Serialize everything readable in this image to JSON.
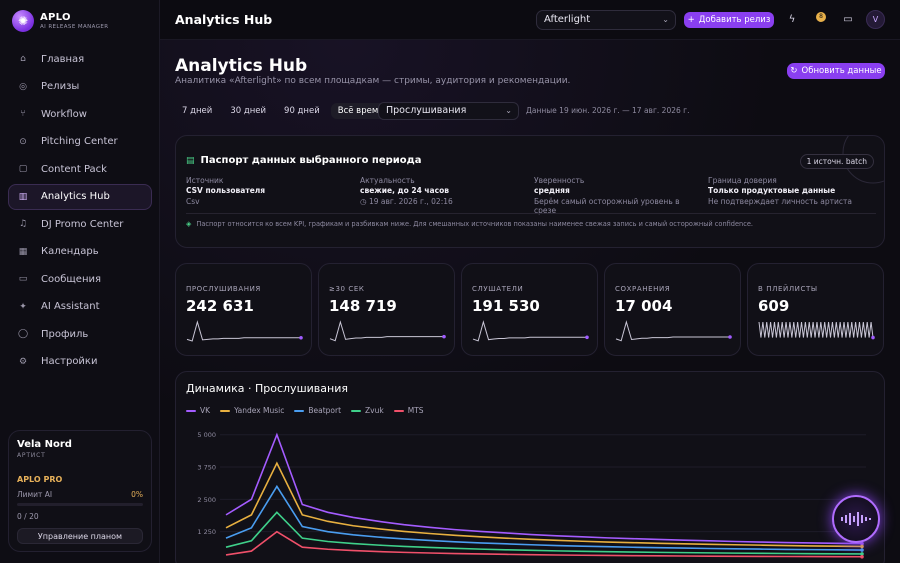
{
  "brand": {
    "name": "APLO",
    "subtitle": "AI RELEASE MANAGER"
  },
  "sidebar": {
    "items": [
      {
        "label": "Главная",
        "icon": "home-icon",
        "active": false
      },
      {
        "label": "Релизы",
        "icon": "disc-icon",
        "active": false
      },
      {
        "label": "Workflow",
        "icon": "workflow-icon",
        "active": false
      },
      {
        "label": "Pitching Center",
        "icon": "target-icon",
        "active": false
      },
      {
        "label": "Content Pack",
        "icon": "package-icon",
        "active": false
      },
      {
        "label": "Analytics Hub",
        "icon": "chart-icon",
        "active": true
      },
      {
        "label": "DJ Promo Center",
        "icon": "headphones-icon",
        "active": false
      },
      {
        "label": "Календарь",
        "icon": "calendar-icon",
        "active": false
      },
      {
        "label": "Сообщения",
        "icon": "message-icon",
        "active": false
      },
      {
        "label": "AI Assistant",
        "icon": "sparkle-icon",
        "active": false
      },
      {
        "label": "Профиль",
        "icon": "user-icon",
        "active": false
      },
      {
        "label": "Настройки",
        "icon": "gear-icon",
        "active": false
      }
    ]
  },
  "user": {
    "name": "Vela Nord",
    "role": "АРТИСТ",
    "plan": "APLO PRO",
    "limit_label": "Лимит AI",
    "limit_pct": "0%",
    "limit_count": "0 / 20",
    "manage_label": "Управление планом"
  },
  "topbar": {
    "title": "Analytics Hub",
    "release": "Afterlight",
    "add_release": "Добавить релиз",
    "notif_count": "8",
    "avatar_letter": "V"
  },
  "page": {
    "title": "Analytics Hub",
    "subtitle": "Аналитика «Afterlight» по всем площадкам — стримы, аудитория и рекомендации.",
    "refresh": "Обновить данные",
    "periods": [
      "7 дней",
      "30 дней",
      "90 дней",
      "Всё время"
    ],
    "active_period": 3,
    "metric": "Прослушивания",
    "data_range": "Данные 19 июн. 2026 г. — 17 авг. 2026 г."
  },
  "passport": {
    "title": "Паспорт данных выбранного периода",
    "batch": "1 источн. batch",
    "columns": [
      {
        "label": "Источник",
        "value": "CSV пользователя",
        "note": "Csv"
      },
      {
        "label": "Актуальность",
        "value": "свежие, до 24 часов",
        "note": "19 авг. 2026 г., 02:16"
      },
      {
        "label": "Уверенность",
        "value": "средняя",
        "note": "Берём самый осторожный уровень в срезе"
      },
      {
        "label": "Граница доверия",
        "value": "Только продуктовые данные",
        "note": "Не подтверждает личность артиста"
      }
    ],
    "footnote": "Паспорт относится ко всем KPI, графикам и разбивкам ниже. Для смешанных источников показаны наименее свежая запись и самый осторожный confidence."
  },
  "kpis": [
    {
      "label": "ПРОСЛУШИВАНИЯ",
      "value": "242 631",
      "spark": [
        5,
        2,
        38,
        4,
        5,
        6,
        6,
        7,
        7,
        7,
        7,
        8,
        8,
        8,
        8,
        8,
        8,
        8,
        8,
        8,
        8,
        8,
        8
      ]
    },
    {
      "label": "≥30 СЕК",
      "value": "148 719",
      "spark": [
        5,
        2,
        30,
        4,
        5,
        6,
        6,
        7,
        7,
        7,
        7,
        8,
        8,
        8,
        8,
        8,
        8,
        8,
        8,
        8,
        8,
        8,
        8
      ]
    },
    {
      "label": "СЛУШАТЕЛИ",
      "value": "191 530",
      "spark": [
        5,
        2,
        34,
        4,
        5,
        6,
        6,
        7,
        7,
        7,
        7,
        8,
        8,
        8,
        8,
        8,
        8,
        8,
        8,
        8,
        8,
        8,
        8
      ]
    },
    {
      "label": "СОХРАНЕНИЯ",
      "value": "17 004",
      "spark": [
        5,
        2,
        32,
        4,
        5,
        6,
        6,
        7,
        7,
        7,
        7,
        8,
        8,
        8,
        8,
        8,
        8,
        8,
        8,
        8,
        8,
        8,
        8
      ]
    },
    {
      "label": "В ПЛЕЙЛИСТЫ",
      "value": "609",
      "spark": [
        9,
        2,
        9,
        2,
        9,
        2,
        9,
        2,
        9,
        2,
        9,
        2,
        9,
        2,
        9,
        2,
        9,
        2,
        9,
        2,
        9,
        2,
        9,
        2,
        9,
        2,
        9,
        2,
        9,
        2,
        9,
        2,
        9,
        2,
        9,
        2,
        9,
        2,
        9,
        2,
        9,
        2,
        9,
        2,
        9,
        2,
        9,
        2,
        9,
        2,
        9,
        2,
        9,
        2,
        9,
        2,
        9,
        2,
        9,
        2
      ]
    }
  ],
  "colors": {
    "accent": "#8a3ff0",
    "kpi_line": "#c9c6d6",
    "kpi_dot": "#a05cff"
  },
  "chart_data": {
    "type": "line",
    "title": "Динамика · Прослушивания",
    "x": [
      0,
      1,
      2,
      3,
      4,
      5,
      6,
      7,
      8,
      9,
      10,
      11,
      12,
      13,
      14,
      15,
      16,
      17,
      18,
      19,
      20,
      21,
      22,
      23,
      24,
      25
    ],
    "yticks": [
      "5 000",
      "3 750",
      "2 500",
      "1 250"
    ],
    "ylim": [
      0,
      5000
    ],
    "grid": true,
    "legend": "top-left",
    "series": [
      {
        "name": "VK",
        "color": "#a45cff",
        "values": [
          1900,
          2500,
          5000,
          2300,
          2000,
          1800,
          1650,
          1520,
          1420,
          1330,
          1260,
          1200,
          1140,
          1090,
          1050,
          1010,
          980,
          950,
          920,
          895,
          870,
          850,
          830,
          815,
          800,
          790
        ]
      },
      {
        "name": "Yandex Music",
        "color": "#e8b040",
        "values": [
          1400,
          1900,
          3900,
          1900,
          1650,
          1480,
          1360,
          1260,
          1180,
          1110,
          1050,
          1000,
          955,
          915,
          880,
          850,
          825,
          800,
          780,
          760,
          745,
          730,
          715,
          700,
          690,
          680
        ]
      },
      {
        "name": "Beatport",
        "color": "#4a9df0",
        "values": [
          1000,
          1400,
          3000,
          1450,
          1250,
          1130,
          1040,
          970,
          910,
          860,
          815,
          780,
          745,
          715,
          690,
          668,
          648,
          630,
          615,
          600,
          588,
          576,
          565,
          556,
          548,
          540
        ]
      },
      {
        "name": "Zvuk",
        "color": "#3fd08a",
        "values": [
          650,
          900,
          2000,
          1000,
          870,
          790,
          730,
          680,
          640,
          605,
          575,
          550,
          528,
          508,
          490,
          475,
          462,
          450,
          440,
          430,
          421,
          413,
          406,
          400,
          394,
          390
        ]
      },
      {
        "name": "MTS",
        "color": "#f0506a",
        "values": [
          350,
          500,
          1250,
          650,
          570,
          520,
          480,
          450,
          425,
          405,
          388,
          373,
          360,
          348,
          338,
          330,
          322,
          315,
          309,
          303,
          298,
          294,
          290,
          286,
          283,
          280
        ]
      }
    ]
  }
}
